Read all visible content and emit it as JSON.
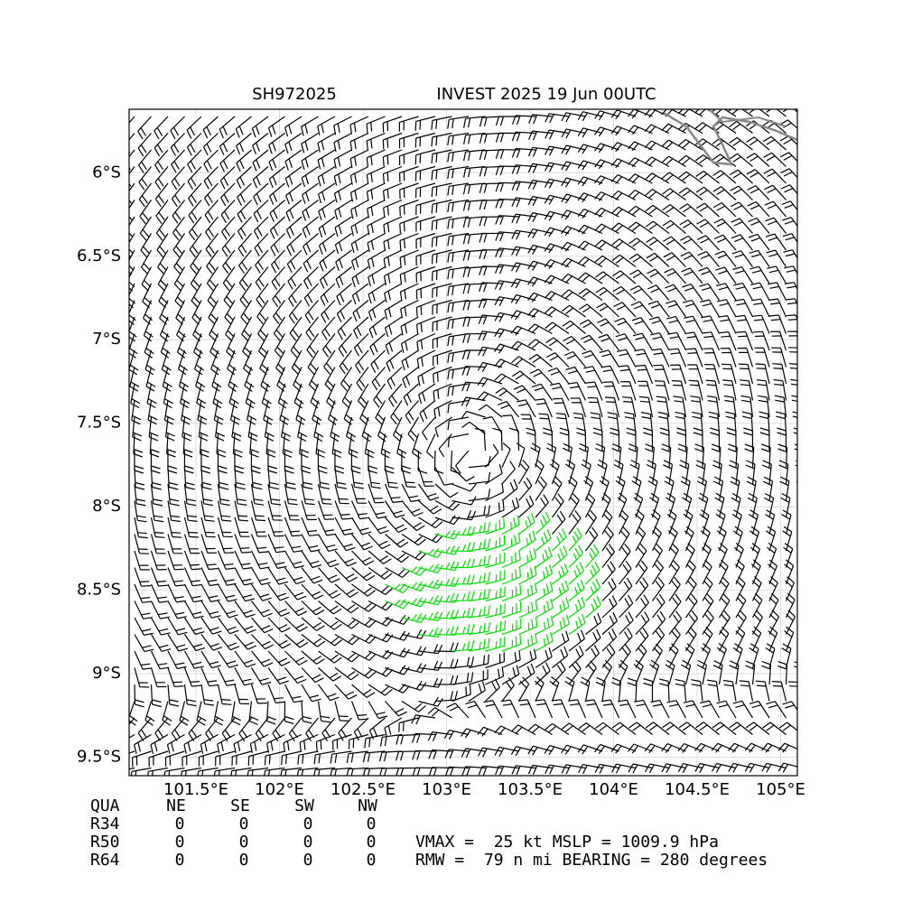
{
  "chart_data": {
    "type": "wind-barb-map",
    "title_left": "SH972025",
    "title_right": "INVEST 2025 19 Jun 00UTC",
    "xlim": [
      101.1,
      105.1
    ],
    "ylim": [
      -9.61,
      -5.62
    ],
    "xticks": [
      {
        "value": 101.5,
        "label": "101.5°E"
      },
      {
        "value": 102,
        "label": "102°E"
      },
      {
        "value": 102.5,
        "label": "102.5°E"
      },
      {
        "value": 103,
        "label": "103°E"
      },
      {
        "value": 103.5,
        "label": "103.5°E"
      },
      {
        "value": 104,
        "label": "104°E"
      },
      {
        "value": 104.5,
        "label": "104.5°E"
      },
      {
        "value": 105,
        "label": "105°E"
      }
    ],
    "yticks": [
      {
        "value": -6,
        "label": "6°S"
      },
      {
        "value": -6.5,
        "label": "6.5°S"
      },
      {
        "value": -7,
        "label": "7°S"
      },
      {
        "value": -7.5,
        "label": "7.5°S"
      },
      {
        "value": -8,
        "label": "8°S"
      },
      {
        "value": -8.5,
        "label": "8.5°S"
      },
      {
        "value": -9,
        "label": "9°S"
      },
      {
        "value": -9.5,
        "label": "9.5°S"
      }
    ],
    "grid": true
  },
  "table": {
    "header": [
      "QUA",
      "NE",
      "SE",
      "SW",
      "NW"
    ],
    "rows": [
      [
        "R34",
        "0",
        "0",
        "0",
        "0"
      ],
      [
        "R50",
        "0",
        "0",
        "0",
        "0"
      ],
      [
        "R64",
        "0",
        "0",
        "0",
        "0"
      ]
    ]
  },
  "info": [
    "VMAX =  25 kt MSLP = 1009.9 hPa",
    "RMW =  79 n mi BEARING = 280 degrees"
  ]
}
